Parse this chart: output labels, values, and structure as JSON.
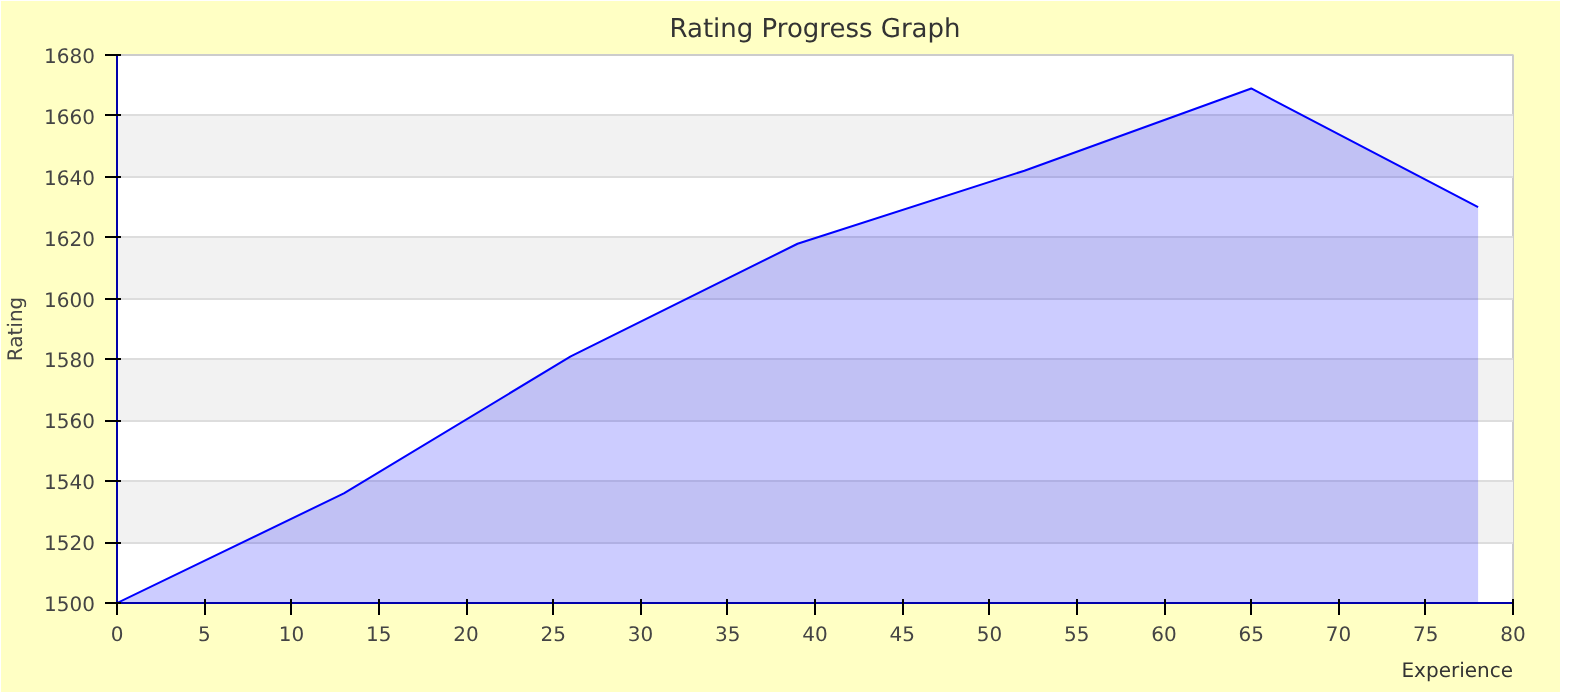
{
  "chart_data": {
    "type": "area",
    "title": "Rating Progress Graph",
    "xlabel": "Experience",
    "ylabel": "Rating",
    "x": [
      0,
      13,
      26,
      39,
      52,
      65,
      78
    ],
    "series": [
      {
        "color": "#0000ff",
        "values": [
          1500,
          1536,
          1581,
          1618,
          1642,
          1669,
          1630
        ]
      }
    ],
    "xlim": [
      0,
      80
    ],
    "xticks": [
      0,
      5,
      10,
      15,
      20,
      25,
      30,
      35,
      40,
      45,
      50,
      55,
      60,
      65,
      70,
      75,
      80
    ],
    "ylim": [
      1500,
      1680
    ],
    "yticks": [
      1500,
      1520,
      1540,
      1560,
      1580,
      1600,
      1620,
      1640,
      1660,
      1680
    ],
    "grid": "y"
  }
}
